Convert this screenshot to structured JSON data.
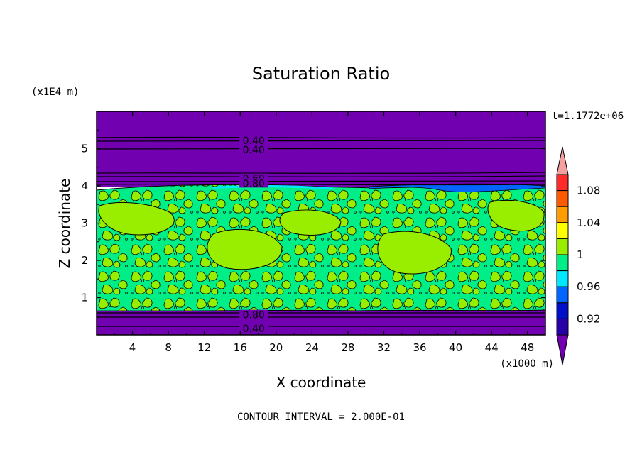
{
  "chart_data": {
    "type": "heatmap",
    "title": "Saturation Ratio",
    "xlabel": "X coordinate",
    "ylabel": "Z coordinate",
    "x_unit": "(x1000 m)",
    "y_unit": "(x1E4 m)",
    "time_label": "t=1.1772e+06",
    "footer": "CONTOUR INTERVAL = 2.000E-01",
    "xlim": [
      0,
      50
    ],
    "ylim": [
      0,
      6
    ],
    "x_ticks": [
      4,
      8,
      12,
      16,
      20,
      24,
      28,
      32,
      36,
      40,
      44,
      48
    ],
    "y_ticks": [
      1,
      2,
      3,
      4,
      5
    ],
    "colorbar_labels": [
      "1.08",
      "1.04",
      "1",
      "0.96",
      "0.92"
    ],
    "colorbar_levels": [
      {
        "min": 1.1,
        "color": "#f4a0a0"
      },
      {
        "min": 1.08,
        "color": "#ff2a2a"
      },
      {
        "min": 1.06,
        "color": "#ff5a00"
      },
      {
        "min": 1.04,
        "color": "#ff9c00"
      },
      {
        "min": 1.02,
        "color": "#ffff00"
      },
      {
        "min": 1.0,
        "color": "#99ee00"
      },
      {
        "min": 0.98,
        "color": "#00ee88"
      },
      {
        "min": 0.96,
        "color": "#00e8ff"
      },
      {
        "min": 0.94,
        "color": "#0066ff"
      },
      {
        "min": 0.92,
        "color": "#0010c8"
      },
      {
        "min": 0.9,
        "color": "#2800a8"
      },
      {
        "min": 0.0,
        "color": "#7000b0"
      }
    ],
    "regions": [
      {
        "z_range": [
          4.0,
          6.0
        ],
        "value": "< 0.90",
        "color": "#7000b0"
      },
      {
        "z_range": [
          0.65,
          4.0
        ],
        "value": "0.98 - 1.02",
        "colors": [
          "#00ee88",
          "#99ee00"
        ]
      },
      {
        "z_range": [
          0.0,
          0.65
        ],
        "value": "< 0.90",
        "color": "#7000b0"
      }
    ],
    "contour_labels": [
      {
        "text": "0.40",
        "x": 17.5,
        "z": 5.2
      },
      {
        "text": "0.40",
        "x": 17.5,
        "z": 4.95
      },
      {
        "text": "0.60",
        "x": 17.5,
        "z": 4.18
      },
      {
        "text": "0.80",
        "x": 17.5,
        "z": 4.05
      },
      {
        "text": "0.80",
        "x": 17.5,
        "z": 0.52
      },
      {
        "text": "0.40",
        "x": 17.5,
        "z": 0.15
      }
    ]
  }
}
